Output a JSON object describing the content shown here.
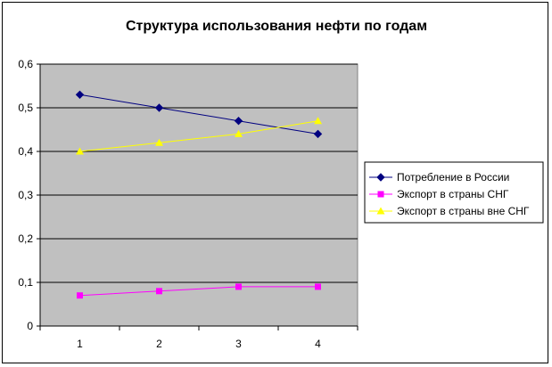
{
  "chart_data": {
    "type": "line",
    "title": "Структура использования нефти по годам",
    "xlabel": "",
    "ylabel": "",
    "x": [
      "1",
      "2",
      "3",
      "4"
    ],
    "ylim": [
      0,
      0.6
    ],
    "yticks": [
      "0",
      "0,1",
      "0,2",
      "0,3",
      "0,4",
      "0,5",
      "0,6"
    ],
    "grid": true,
    "legend_position": "right",
    "plot_background": "#C0C0C0",
    "series": [
      {
        "name": "Потребление в России",
        "values": [
          0.53,
          0.5,
          0.47,
          0.44
        ],
        "color": "#000080",
        "marker": "diamond"
      },
      {
        "name": "Экспорт в страны СНГ",
        "values": [
          0.07,
          0.08,
          0.09,
          0.09
        ],
        "color": "#FF00FF",
        "marker": "square"
      },
      {
        "name": "Экспорт в страны вне СНГ",
        "values": [
          0.4,
          0.42,
          0.44,
          0.47
        ],
        "color": "#FFFF00",
        "marker": "triangle"
      }
    ]
  }
}
